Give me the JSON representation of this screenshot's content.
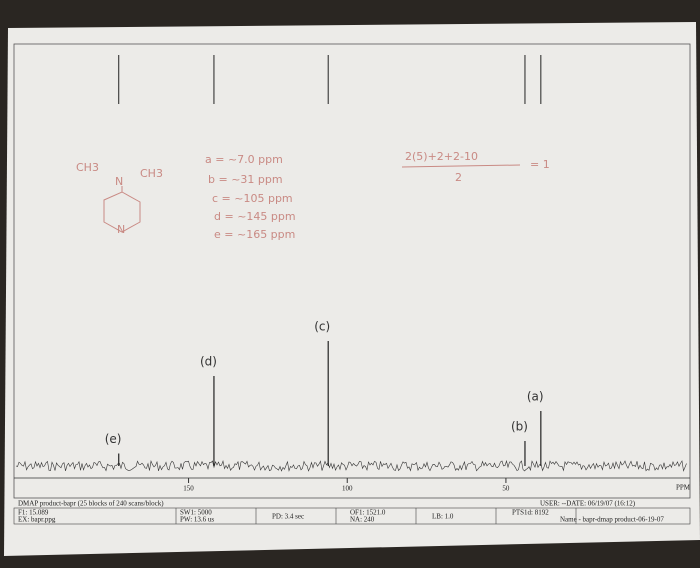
{
  "spectrum": {
    "xlim": [
      205,
      -8
    ],
    "xticks": [
      150,
      100,
      50
    ],
    "x_unit": "PPM",
    "intensity_lim": [
      0,
      100
    ],
    "peaks": [
      {
        "label": "(e)",
        "ppm": 172,
        "intensity": 10
      },
      {
        "label": "(d)",
        "ppm": 142,
        "intensity": 72
      },
      {
        "label": "(c)",
        "ppm": 106,
        "intensity": 100
      },
      {
        "label": "(b)",
        "ppm": 44,
        "intensity": 20
      },
      {
        "label": "(a)",
        "ppm": 39,
        "intensity": 44
      }
    ]
  },
  "notes": {
    "assignments": [
      "a = ~7.0 ppm",
      "b = ~31 ppm",
      "c = ~105 ppm",
      "d = ~145 ppm",
      "e = ~165 ppm"
    ],
    "calc_top": "2(5)+2+2-10",
    "calc_bottom": "2",
    "calc_result": "= 1",
    "structure": [
      "CH3",
      "CH3",
      "N",
      "N"
    ]
  },
  "footer": {
    "title": "DMAP product-bapr (25 blocks of 240 scans/block)",
    "cells": [
      "F1: 15.089",
      "EX: bapr.ppg",
      "SW1: 5000",
      "PW: 13.6 us",
      "PD: 3.4 sec",
      "OF1: 1521.0",
      "NA: 240",
      "LB: 1.0",
      "USER: --DATE: 06/19/07 (16:12)",
      "PTS1d: 8192",
      "Name - bapr-dmap product-06-19-07"
    ]
  }
}
